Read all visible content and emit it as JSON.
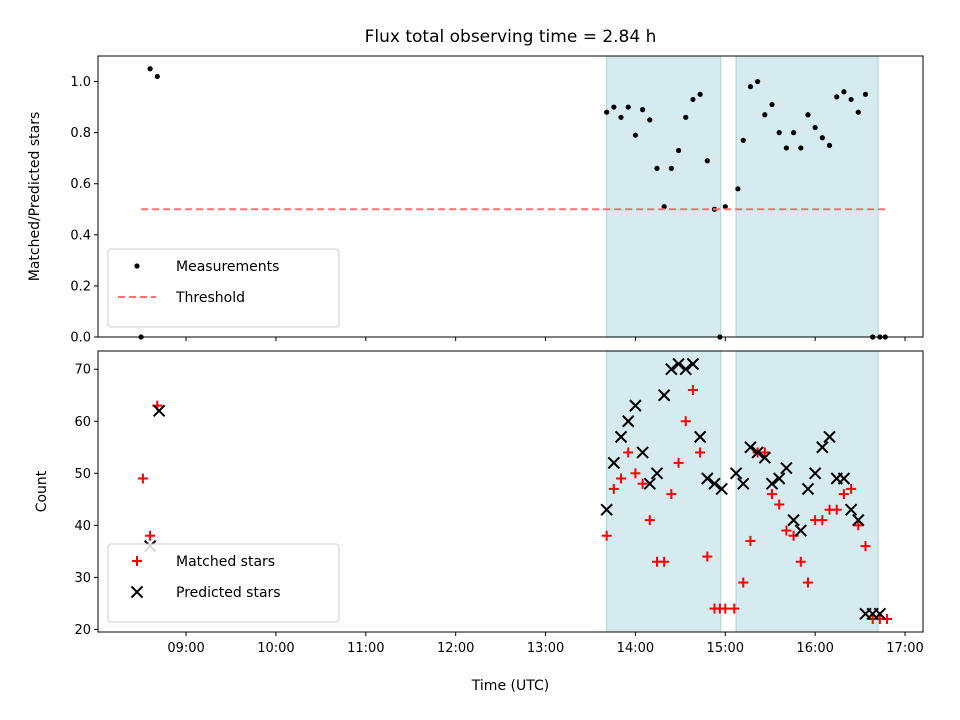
{
  "chart_data": [
    {
      "type": "scatter",
      "title": "Flux total observing time = 2.84 h",
      "xlabel": "",
      "ylabel": "Matched/Predicted stars",
      "ylim": [
        0,
        1.1
      ],
      "yticks": [
        0.0,
        0.2,
        0.4,
        0.6,
        0.8,
        1.0
      ],
      "ytick_labels": [
        "0.0",
        "0.2",
        "0.4",
        "0.6",
        "0.8",
        "1.0"
      ],
      "x_unit": "hours UTC",
      "xlim": [
        8.02,
        17.2
      ],
      "xticks": [
        9,
        10,
        11,
        12,
        13,
        14,
        15,
        16,
        17
      ],
      "xtick_labels": [
        "09:00",
        "10:00",
        "11:00",
        "12:00",
        "13:00",
        "14:00",
        "15:00",
        "16:00",
        "17:00"
      ],
      "shaded_intervals": [
        [
          13.68,
          14.95
        ],
        [
          15.12,
          16.7
        ]
      ],
      "shade_color": "#d5ebf0",
      "legend_position": "lower-left",
      "series": [
        {
          "name": "Measurements",
          "marker": "dot",
          "color": "#000000",
          "x": [
            8.5,
            8.6,
            8.68,
            13.68,
            13.76,
            13.84,
            13.92,
            14.0,
            14.08,
            14.16,
            14.24,
            14.32,
            14.4,
            14.48,
            14.56,
            14.64,
            14.72,
            14.8,
            14.88,
            14.94,
            15.0,
            15.14,
            15.2,
            15.28,
            15.36,
            15.44,
            15.52,
            15.6,
            15.68,
            15.76,
            15.84,
            15.92,
            16.0,
            16.08,
            16.16,
            16.24,
            16.32,
            16.4,
            16.48,
            16.56,
            16.64,
            16.72,
            16.78
          ],
          "y": [
            0.0,
            1.05,
            1.02,
            0.88,
            0.9,
            0.86,
            0.9,
            0.79,
            0.89,
            0.85,
            0.66,
            0.51,
            0.66,
            0.73,
            0.86,
            0.93,
            0.95,
            0.69,
            0.5,
            0.0,
            0.51,
            0.58,
            0.77,
            0.98,
            1.0,
            0.87,
            0.91,
            0.8,
            0.74,
            0.8,
            0.74,
            0.87,
            0.82,
            0.78,
            0.75,
            0.94,
            0.96,
            0.93,
            0.88,
            0.95,
            0.0,
            0.0,
            0.0
          ]
        },
        {
          "name": "Threshold",
          "marker": "dashed-line",
          "color": "#ff7070",
          "x": [
            8.5,
            16.8
          ],
          "y": [
            0.5,
            0.5
          ]
        }
      ]
    },
    {
      "type": "scatter",
      "title": "",
      "xlabel": "Time (UTC)",
      "ylabel": "Count",
      "ylim": [
        19.5,
        73.5
      ],
      "yticks": [
        20,
        30,
        40,
        50,
        60,
        70
      ],
      "ytick_labels": [
        "20",
        "30",
        "40",
        "50",
        "60",
        "70"
      ],
      "x_unit": "hours UTC",
      "xlim": [
        8.02,
        17.2
      ],
      "xticks": [
        9,
        10,
        11,
        12,
        13,
        14,
        15,
        16,
        17
      ],
      "xtick_labels": [
        "09:00",
        "10:00",
        "11:00",
        "12:00",
        "13:00",
        "14:00",
        "15:00",
        "16:00",
        "17:00"
      ],
      "shaded_intervals": [
        [
          13.68,
          14.95
        ],
        [
          15.12,
          16.7
        ]
      ],
      "shade_color": "#d5ebf0",
      "legend_position": "lower-left",
      "series": [
        {
          "name": "Matched stars",
          "marker": "plus",
          "color": "#ff0000",
          "x": [
            8.52,
            8.6,
            8.68,
            13.68,
            13.76,
            13.84,
            13.92,
            14.0,
            14.08,
            14.16,
            14.24,
            14.32,
            14.4,
            14.48,
            14.56,
            14.64,
            14.72,
            14.8,
            14.88,
            14.94,
            15.0,
            15.1,
            15.2,
            15.28,
            15.36,
            15.44,
            15.52,
            15.6,
            15.68,
            15.76,
            15.84,
            15.92,
            16.0,
            16.08,
            16.16,
            16.24,
            16.32,
            16.4,
            16.48,
            16.56,
            16.64,
            16.72,
            16.8
          ],
          "y": [
            49,
            38,
            63,
            38,
            47,
            49,
            54,
            50,
            48,
            41,
            33,
            33,
            46,
            52,
            60,
            66,
            54,
            34,
            24,
            24,
            24,
            24,
            29,
            37,
            54,
            54,
            46,
            44,
            39,
            38,
            33,
            29,
            41,
            41,
            43,
            43,
            46,
            47,
            40,
            36,
            22,
            22,
            22
          ]
        },
        {
          "name": "Predicted stars",
          "marker": "x",
          "color": "#000000",
          "x": [
            8.6,
            8.7,
            13.68,
            13.76,
            13.84,
            13.92,
            14.0,
            14.08,
            14.16,
            14.24,
            14.32,
            14.4,
            14.48,
            14.56,
            14.64,
            14.72,
            14.8,
            14.88,
            14.96,
            15.12,
            15.2,
            15.28,
            15.36,
            15.44,
            15.52,
            15.6,
            15.68,
            15.76,
            15.84,
            15.92,
            16.0,
            16.08,
            16.16,
            16.24,
            16.32,
            16.4,
            16.48,
            16.56,
            16.64,
            16.72
          ],
          "y": [
            36,
            62,
            43,
            52,
            57,
            60,
            63,
            54,
            48,
            50,
            65,
            70,
            71,
            70,
            71,
            57,
            49,
            48,
            47,
            50,
            48,
            55,
            54,
            53,
            48,
            49,
            51,
            41,
            39,
            47,
            50,
            55,
            57,
            49,
            49,
            43,
            41,
            23,
            23,
            23
          ]
        }
      ]
    }
  ]
}
